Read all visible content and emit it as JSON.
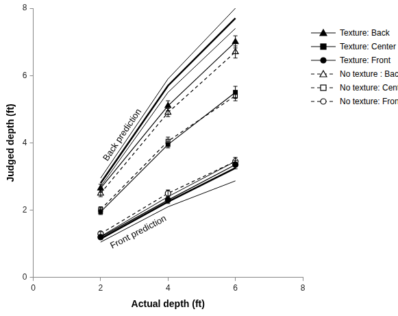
{
  "chart_data": {
    "type": "line",
    "x_label": "Actual depth (ft)",
    "y_label": "Judged depth (ft)",
    "x": [
      2,
      4,
      6
    ],
    "xlim": [
      0,
      8
    ],
    "xticks": [
      0,
      2,
      4,
      6,
      8
    ],
    "ylim": [
      0,
      8
    ],
    "yticks": [
      0,
      2,
      4,
      6,
      8
    ],
    "grid": false,
    "legend": "right",
    "series": [
      {
        "name": "Texture: Back",
        "color": "#000000",
        "marker": "triangle",
        "line_style": "solid",
        "values": [
          2.65,
          5.1,
          7.0
        ],
        "errors": [
          0.12,
          0.15,
          0.18
        ]
      },
      {
        "name": "Texture: Center",
        "color": "#000000",
        "marker": "square",
        "line_style": "solid",
        "values": [
          1.95,
          3.95,
          5.5
        ],
        "errors": [
          0.08,
          0.1,
          0.18
        ]
      },
      {
        "name": "Texture: Front",
        "color": "#000000",
        "marker": "circle",
        "line_style": "solid",
        "values": [
          1.2,
          2.3,
          3.35
        ],
        "errors": [
          0.06,
          0.1,
          0.12
        ]
      },
      {
        "name": "No texture : Back",
        "color": "#000000",
        "marker": "triangle-open",
        "line_style": "dashed",
        "values": [
          2.5,
          4.9,
          6.7
        ],
        "errors": [
          0.1,
          0.12,
          0.18
        ]
      },
      {
        "name": "No texture: Center",
        "color": "#000000",
        "marker": "square-open",
        "line_style": "dashed",
        "values": [
          2.02,
          4.05,
          5.4
        ],
        "errors": [
          0.08,
          0.12,
          0.15
        ]
      },
      {
        "name": "No texture: Front",
        "color": "#000000",
        "marker": "circle-open",
        "line_style": "dashed",
        "values": [
          1.3,
          2.5,
          3.45
        ],
        "errors": [
          0.06,
          0.1,
          0.12
        ]
      }
    ],
    "predictions": [
      {
        "annotation": "Back prediction",
        "color": "#000000",
        "line_style": "solid",
        "values": [
          2.8,
          5.7,
          7.7
        ],
        "lower": [
          2.7,
          5.5,
          7.4
        ],
        "upper": [
          2.95,
          5.9,
          8.0
        ]
      },
      {
        "annotation": "Front prediction",
        "color": "#000000",
        "line_style": "solid",
        "values": [
          1.15,
          2.25,
          3.25
        ],
        "lower": [
          1.05,
          2.1,
          2.87
        ],
        "upper": [
          1.22,
          2.4,
          3.45
        ]
      }
    ]
  }
}
